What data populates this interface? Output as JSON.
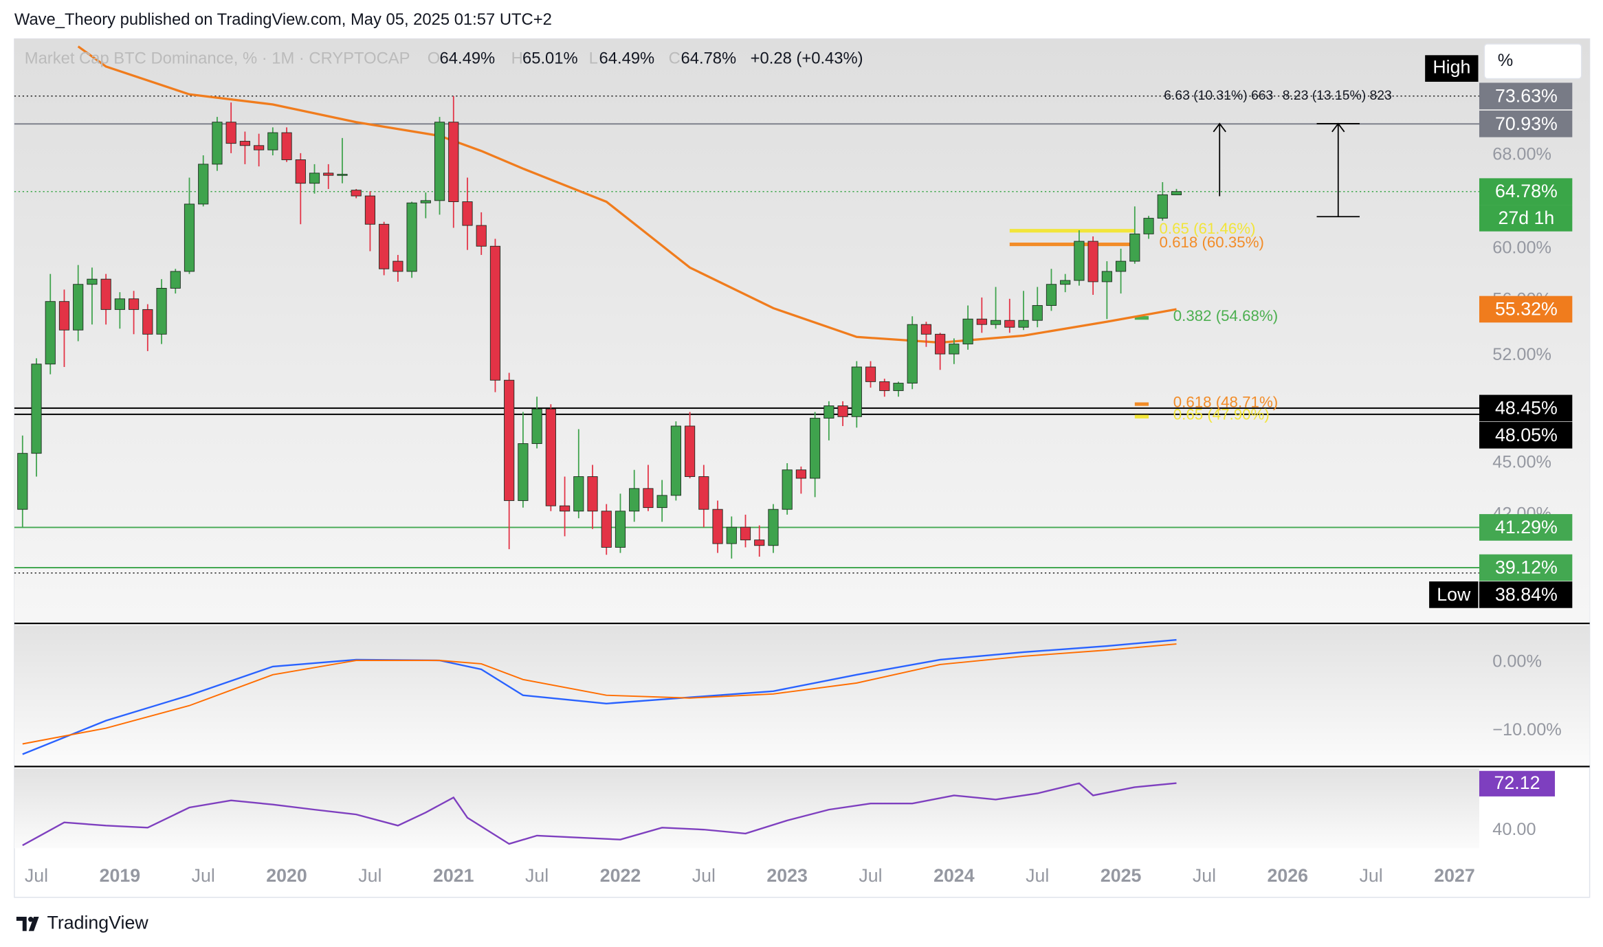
{
  "header": {
    "publisher": "Wave_Theory published on TradingView.com, May 05, 2025 01:57 UTC+2",
    "symbol": "Market Cap BTC Dominance, % · 1M · CRYPTOCAP",
    "ohlc_letters": [
      "O",
      "H",
      "L",
      "C"
    ],
    "ohlc_labels": [
      "64.49%",
      "65.01%",
      "64.49%",
      "64.78%"
    ],
    "change": "+0.28 (+0.43%)"
  },
  "chart_data": [
    {
      "type": "candlestick",
      "x": [
        "2018-06",
        "2018-07",
        "2018-08",
        "2018-09",
        "2018-10",
        "2018-11",
        "2018-12",
        "2019-01",
        "2019-02",
        "2019-03",
        "2019-04",
        "2019-05",
        "2019-06",
        "2019-07",
        "2019-08",
        "2019-09",
        "2019-10",
        "2019-11",
        "2019-12",
        "2020-01",
        "2020-02",
        "2020-03",
        "2020-04",
        "2020-05",
        "2020-06",
        "2020-07",
        "2020-08",
        "2020-09",
        "2020-10",
        "2020-11",
        "2020-12",
        "2021-01",
        "2021-02",
        "2021-03",
        "2021-04",
        "2021-05",
        "2021-06",
        "2021-07",
        "2021-08",
        "2021-09",
        "2021-10",
        "2021-11",
        "2021-12",
        "2022-01",
        "2022-02",
        "2022-03",
        "2022-04",
        "2022-05",
        "2022-06",
        "2022-07",
        "2022-08",
        "2022-09",
        "2022-10",
        "2022-11",
        "2022-12",
        "2023-01",
        "2023-02",
        "2023-03",
        "2023-04",
        "2023-05",
        "2023-06",
        "2023-07",
        "2023-08",
        "2023-09",
        "2023-10",
        "2023-11",
        "2023-12",
        "2024-01",
        "2024-02",
        "2024-03",
        "2024-04",
        "2024-05",
        "2024-06",
        "2024-07",
        "2024-08",
        "2024-09",
        "2024-10",
        "2024-11",
        "2024-12",
        "2025-01",
        "2025-02",
        "2025-03",
        "2025-04",
        "2025-05"
      ],
      "open": [
        42.3,
        45.6,
        51.4,
        55.9,
        53.8,
        57.2,
        57.6,
        55.3,
        56.1,
        55.3,
        53.5,
        56.9,
        58.2,
        63.7,
        67.2,
        71.1,
        69.3,
        68.9,
        68.5,
        70.1,
        67.6,
        65.5,
        66.4,
        66.2,
        64.9,
        64.4,
        62.0,
        59.0,
        58.2,
        63.8,
        64.0,
        71.1,
        63.9,
        61.9,
        60.2,
        50.3,
        42.8,
        46.2,
        48.4,
        42.5,
        42.2,
        44.2,
        42.2,
        40.2,
        42.2,
        43.5,
        42.4,
        43.1,
        47.3,
        44.2,
        42.3,
        40.4,
        41.3,
        40.6,
        40.3,
        42.3,
        44.6,
        44.1,
        47.8,
        48.6,
        47.9,
        51.2,
        50.2,
        49.6,
        50.1,
        54.2,
        53.5,
        52.1,
        52.8,
        54.6,
        54.2,
        54.5,
        54.0,
        54.5,
        55.6,
        57.2,
        57.5,
        60.6,
        57.4,
        58.2,
        59.0,
        61.2,
        62.5,
        64.49
      ],
      "high": [
        46.7,
        51.8,
        58.0,
        56.8,
        58.7,
        58.5,
        58.0,
        56.6,
        56.7,
        55.7,
        57.6,
        58.4,
        66.0,
        68.0,
        71.6,
        73.0,
        70.2,
        70.0,
        70.6,
        70.6,
        68.2,
        67.2,
        67.2,
        69.6,
        65.0,
        64.8,
        62.2,
        59.5,
        63.9,
        64.7,
        71.6,
        73.63,
        66.0,
        63.0,
        60.8,
        50.8,
        48.2,
        49.2,
        48.7,
        44.2,
        47.1,
        44.9,
        42.6,
        43.2,
        44.6,
        44.9,
        44.0,
        47.6,
        48.2,
        44.9,
        42.8,
        41.9,
        42.0,
        41.4,
        42.6,
        45.0,
        44.8,
        48.2,
        48.9,
        48.9,
        51.6,
        51.6,
        50.4,
        50.2,
        54.8,
        54.4,
        53.6,
        53.2,
        55.6,
        56.2,
        57.0,
        56.1,
        56.7,
        57.0,
        58.4,
        58.0,
        61.5,
        61.0,
        59.0,
        60.0,
        63.5,
        62.7,
        65.6,
        65.01
      ],
      "low": [
        41.3,
        44.2,
        50.7,
        51.2,
        53.0,
        54.2,
        54.2,
        53.9,
        53.5,
        52.3,
        52.8,
        56.5,
        58.0,
        63.5,
        66.6,
        68.2,
        67.2,
        67.0,
        68.0,
        67.4,
        62.0,
        64.6,
        65.0,
        65.5,
        64.2,
        59.8,
        57.9,
        57.4,
        57.7,
        62.5,
        62.8,
        61.7,
        59.9,
        59.5,
        49.5,
        40.1,
        42.4,
        45.9,
        42.2,
        40.8,
        41.8,
        41.2,
        39.8,
        39.9,
        41.6,
        42.2,
        41.6,
        42.8,
        44.1,
        41.3,
        39.9,
        39.6,
        40.2,
        39.7,
        39.9,
        42.0,
        43.2,
        43.0,
        46.4,
        47.3,
        47.2,
        49.8,
        49.2,
        49.2,
        49.7,
        52.6,
        51.0,
        51.4,
        52.4,
        53.6,
        53.9,
        53.6,
        53.8,
        54.0,
        55.2,
        56.6,
        57.1,
        56.4,
        54.6,
        56.5,
        58.8,
        60.8,
        62.3,
        64.49
      ],
      "close": [
        45.6,
        51.4,
        55.9,
        53.8,
        57.2,
        57.6,
        55.3,
        56.1,
        55.3,
        53.5,
        56.9,
        58.2,
        63.7,
        67.2,
        71.1,
        69.1,
        68.9,
        68.5,
        70.1,
        67.6,
        65.5,
        66.4,
        66.2,
        66.3,
        64.4,
        62.0,
        58.4,
        58.2,
        63.8,
        64.0,
        71.1,
        63.9,
        61.9,
        60.2,
        50.3,
        42.8,
        46.2,
        48.4,
        42.5,
        42.2,
        44.2,
        42.2,
        40.2,
        42.2,
        43.5,
        42.4,
        43.1,
        47.3,
        44.2,
        42.3,
        40.4,
        41.3,
        40.6,
        40.3,
        42.3,
        44.6,
        44.1,
        47.8,
        48.6,
        47.9,
        51.2,
        50.2,
        49.6,
        50.1,
        54.2,
        53.5,
        52.1,
        52.8,
        54.6,
        54.2,
        54.5,
        54.0,
        54.5,
        55.6,
        57.2,
        57.5,
        60.6,
        57.4,
        58.2,
        59.0,
        61.2,
        62.5,
        64.5,
        64.78
      ],
      "up_color": "#3fa34d",
      "down_color": "#e33346",
      "ylim": [
        36.4,
        79.5
      ],
      "log_scale": true,
      "yticks": [
        {
          "value": 68,
          "label": "68.00%"
        },
        {
          "value": 60,
          "label": "60.00%"
        },
        {
          "value": 56,
          "label": "56.00%"
        },
        {
          "value": 52,
          "label": "52.00%"
        },
        {
          "value": 45,
          "label": "45.00%"
        },
        {
          "value": 42,
          "label": "42.00%"
        }
      ],
      "xticks": [
        {
          "value": "2018-07",
          "label": "Jul"
        },
        {
          "value": "2019-01",
          "label": "2019"
        },
        {
          "value": "2019-07",
          "label": "Jul"
        },
        {
          "value": "2020-01",
          "label": "2020"
        },
        {
          "value": "2020-07",
          "label": "Jul"
        },
        {
          "value": "2021-01",
          "label": "2021"
        },
        {
          "value": "2021-07",
          "label": "Jul"
        },
        {
          "value": "2022-01",
          "label": "2022"
        },
        {
          "value": "2022-07",
          "label": "Jul"
        },
        {
          "value": "2023-01",
          "label": "2023"
        },
        {
          "value": "2023-07",
          "label": "Jul"
        },
        {
          "value": "2024-01",
          "label": "2024"
        },
        {
          "value": "2024-07",
          "label": "Jul"
        },
        {
          "value": "2025-01",
          "label": "2025"
        },
        {
          "value": "2025-07",
          "label": "Jul"
        },
        {
          "value": "2026-01",
          "label": "2026"
        },
        {
          "value": "2026-07",
          "label": "Jul"
        },
        {
          "value": "2027-01",
          "label": "2027"
        }
      ],
      "overlays": [
        {
          "color": "#f07c1d",
          "x": [
            "2018-10",
            "2018-12",
            "2019-06",
            "2019-12",
            "2020-06",
            "2020-12",
            "2021-03",
            "2021-06",
            "2021-12",
            "2022-06",
            "2022-12",
            "2023-06",
            "2023-12",
            "2024-06",
            "2024-12",
            "2025-05"
          ],
          "values": [
            78.7,
            76.6,
            73.8,
            72.8,
            71.1,
            69.8,
            68.4,
            66.8,
            63.9,
            58.5,
            55.4,
            53.3,
            52.9,
            53.4,
            54.4,
            55.32
          ]
        }
      ],
      "price_markers": [
        {
          "value": 73.63,
          "label": "73.63%",
          "color": "#787b86",
          "line": "dotted",
          "line_color": "#222222"
        },
        {
          "value": 70.93,
          "label": "70.93%",
          "color": "#787b86",
          "line": "solid",
          "line_color": "#787b86"
        },
        {
          "value": 64.78,
          "label": "64.78%",
          "color": "#3aa648",
          "line": "dotted",
          "line_color": "#3aa648",
          "countdown": "27d 1h"
        },
        {
          "value": 55.32,
          "label": "55.32%",
          "color": "#f07c1d",
          "line": "none",
          "line_color": "#f07c1d"
        },
        {
          "value": 48.45,
          "label": "48.45%",
          "color": "#000000",
          "line": "solid",
          "line_color": "#000000"
        },
        {
          "value": 48.05,
          "label": "48.05%",
          "color": "#000000",
          "line": "solid",
          "line_color": "#000000"
        },
        {
          "value": 41.29,
          "label": "41.29%",
          "color": "#43a851",
          "line": "solid",
          "line_color": "#43a851"
        },
        {
          "value": 39.12,
          "label": "39.12%",
          "color": "#43a851",
          "line": "solid",
          "line_color": "#43a851"
        },
        {
          "value": 38.84,
          "label": "38.84%",
          "color": "#000000",
          "line": "dotted",
          "line_color": "#222222",
          "tag": "Low"
        }
      ],
      "fib_levels": [
        {
          "label": "0.65 (61.46%)",
          "value": 61.46,
          "color": "#f2e53a",
          "x": [
            "2024-05",
            "2025-02"
          ]
        },
        {
          "label": "0.618 (60.35%)",
          "value": 60.35,
          "color": "#f28c28",
          "x": [
            "2024-05",
            "2025-02"
          ]
        },
        {
          "label": "0.382 (54.68%)",
          "value": 54.68,
          "color": "#4caf50",
          "x": [
            "2025-02",
            "2025-03"
          ]
        },
        {
          "label": "0.618 (48.71%)",
          "value": 48.71,
          "color": "#f28c28",
          "x": [
            "2025-02",
            "2025-03"
          ]
        },
        {
          "label": "0.65 (47.90%)",
          "value": 47.9,
          "color": "#f2e53a",
          "x": [
            "2025-02",
            "2025-03"
          ]
        }
      ],
      "measures": [
        "6.63 (10.31%) 663",
        "8.23 (13.15%) 823"
      ],
      "high_tag": "High",
      "scale_mode": "%"
    },
    {
      "type": "line",
      "ylim": [
        -14.9,
        5.4
      ],
      "yticks": [
        {
          "value": 0,
          "label": "0.00%"
        },
        {
          "value": -10,
          "label": "−10.00%"
        }
      ],
      "series": [
        {
          "color": "#2962ff",
          "x": [
            "2018-06",
            "2018-12",
            "2019-06",
            "2019-12",
            "2020-06",
            "2020-12",
            "2021-03",
            "2021-06",
            "2021-12",
            "2022-06",
            "2022-12",
            "2023-06",
            "2023-12",
            "2024-06",
            "2024-12",
            "2025-05"
          ],
          "values": [
            -13.4,
            -8.5,
            -4.8,
            -0.6,
            0.4,
            0.3,
            -1.0,
            -4.8,
            -6.0,
            -5.1,
            -4.2,
            -1.8,
            0.4,
            1.5,
            2.4,
            3.3
          ]
        },
        {
          "color": "#ff6d00",
          "x": [
            "2018-06",
            "2018-12",
            "2019-06",
            "2019-12",
            "2020-06",
            "2020-12",
            "2021-03",
            "2021-06",
            "2021-12",
            "2022-06",
            "2022-12",
            "2023-06",
            "2023-12",
            "2024-06",
            "2024-12",
            "2025-05"
          ],
          "values": [
            -11.9,
            -9.6,
            -6.3,
            -1.8,
            0.3,
            0.3,
            -0.2,
            -2.5,
            -4.8,
            -5.2,
            -4.6,
            -3.0,
            -0.3,
            0.9,
            1.8,
            2.7
          ]
        }
      ]
    },
    {
      "type": "line",
      "ylim": [
        28,
        82
      ],
      "yticks": [
        {
          "value": 40,
          "label": "40.00"
        }
      ],
      "series": [
        {
          "color": "#7e3fbf",
          "last_label": "72.12",
          "x": [
            "2018-06",
            "2018-09",
            "2018-12",
            "2019-03",
            "2019-06",
            "2019-09",
            "2019-12",
            "2020-03",
            "2020-06",
            "2020-09",
            "2020-11",
            "2021-01",
            "2021-02",
            "2021-05",
            "2021-07",
            "2021-10",
            "2022-01",
            "2022-04",
            "2022-07",
            "2022-10",
            "2023-01",
            "2023-04",
            "2023-07",
            "2023-10",
            "2024-01",
            "2024-04",
            "2024-07",
            "2024-10",
            "2024-11",
            "2025-02",
            "2025-05"
          ],
          "values": [
            30,
            45.5,
            43.4,
            42,
            55.6,
            60.4,
            57.6,
            54.2,
            50.9,
            43.4,
            52.2,
            62.4,
            48.7,
            31,
            36.6,
            35.2,
            33.9,
            42,
            40.7,
            38,
            46.8,
            54.2,
            58.3,
            58.3,
            63.8,
            61,
            65.2,
            72,
            63.8,
            69.4,
            72.12
          ]
        }
      ]
    }
  ],
  "footer": {
    "brand": "TradingView"
  }
}
